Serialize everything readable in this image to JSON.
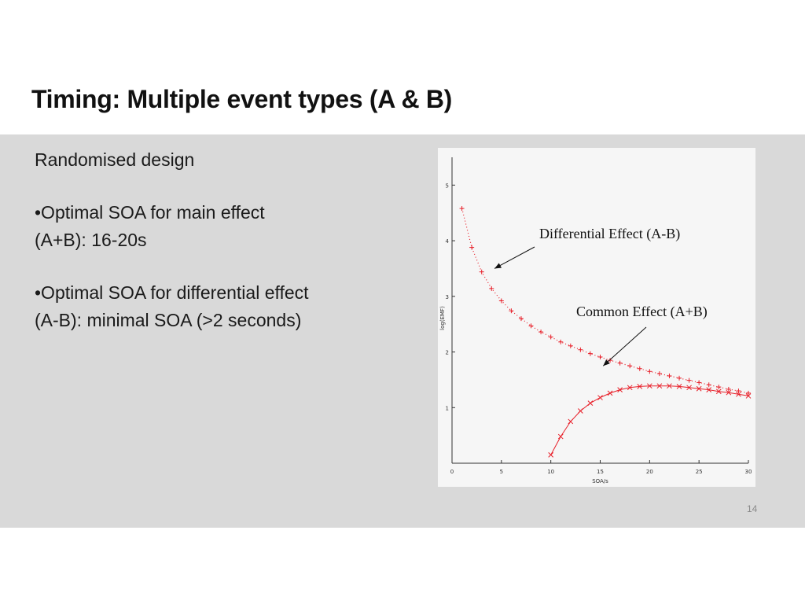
{
  "slide": {
    "title": "Timing: Multiple event types (A & B)",
    "page_number": "14"
  },
  "body": {
    "heading": "Randomised design",
    "bullets": [
      "•Optimal SOA for main effect (A+B): 16-20s",
      "•Optimal SOA for differential effect (A-B): minimal SOA (>2 seconds)"
    ]
  },
  "chart_data": {
    "type": "scatter",
    "xlabel": "SOA/s",
    "ylabel": "log(EMF)",
    "xlim": [
      0,
      30
    ],
    "ylim": [
      0,
      5.5
    ],
    "x_ticks": [
      0,
      5,
      10,
      15,
      20,
      25,
      30
    ],
    "y_ticks": [
      1,
      2,
      3,
      4,
      5
    ],
    "grid": false,
    "colors": {
      "data": "#e8202a",
      "axes": "#333333",
      "annotation": "#111111"
    },
    "series": [
      {
        "marker": "+",
        "line": "dotted",
        "x": [
          1,
          2,
          3,
          4,
          5,
          6,
          7,
          8,
          9,
          10,
          11,
          12,
          13,
          14,
          15,
          16,
          17,
          18,
          19,
          20,
          21,
          22,
          23,
          24,
          25,
          26,
          27,
          28,
          29,
          30
        ],
        "y": [
          4.58,
          3.88,
          3.44,
          3.14,
          2.92,
          2.74,
          2.6,
          2.47,
          2.36,
          2.27,
          2.18,
          2.11,
          2.04,
          1.97,
          1.91,
          1.85,
          1.8,
          1.75,
          1.7,
          1.65,
          1.61,
          1.57,
          1.53,
          1.49,
          1.45,
          1.41,
          1.37,
          1.33,
          1.3,
          1.26
        ]
      },
      {
        "marker": "x",
        "line": "solid",
        "x": [
          10,
          11,
          12,
          13,
          14,
          15,
          16,
          17,
          18,
          19,
          20,
          21,
          22,
          23,
          24,
          25,
          26,
          27,
          28,
          29,
          30
        ],
        "y": [
          0.15,
          0.48,
          0.75,
          0.94,
          1.08,
          1.18,
          1.26,
          1.32,
          1.36,
          1.38,
          1.39,
          1.39,
          1.39,
          1.38,
          1.36,
          1.34,
          1.32,
          1.29,
          1.27,
          1.24,
          1.21
        ]
      }
    ],
    "annotations": [
      {
        "text": "Differential Effect (A-B)",
        "arrow_to": [
          4.3,
          3.5
        ]
      },
      {
        "text": "Common Effect (A+B)",
        "arrow_to": [
          15.3,
          1.75
        ]
      }
    ]
  }
}
